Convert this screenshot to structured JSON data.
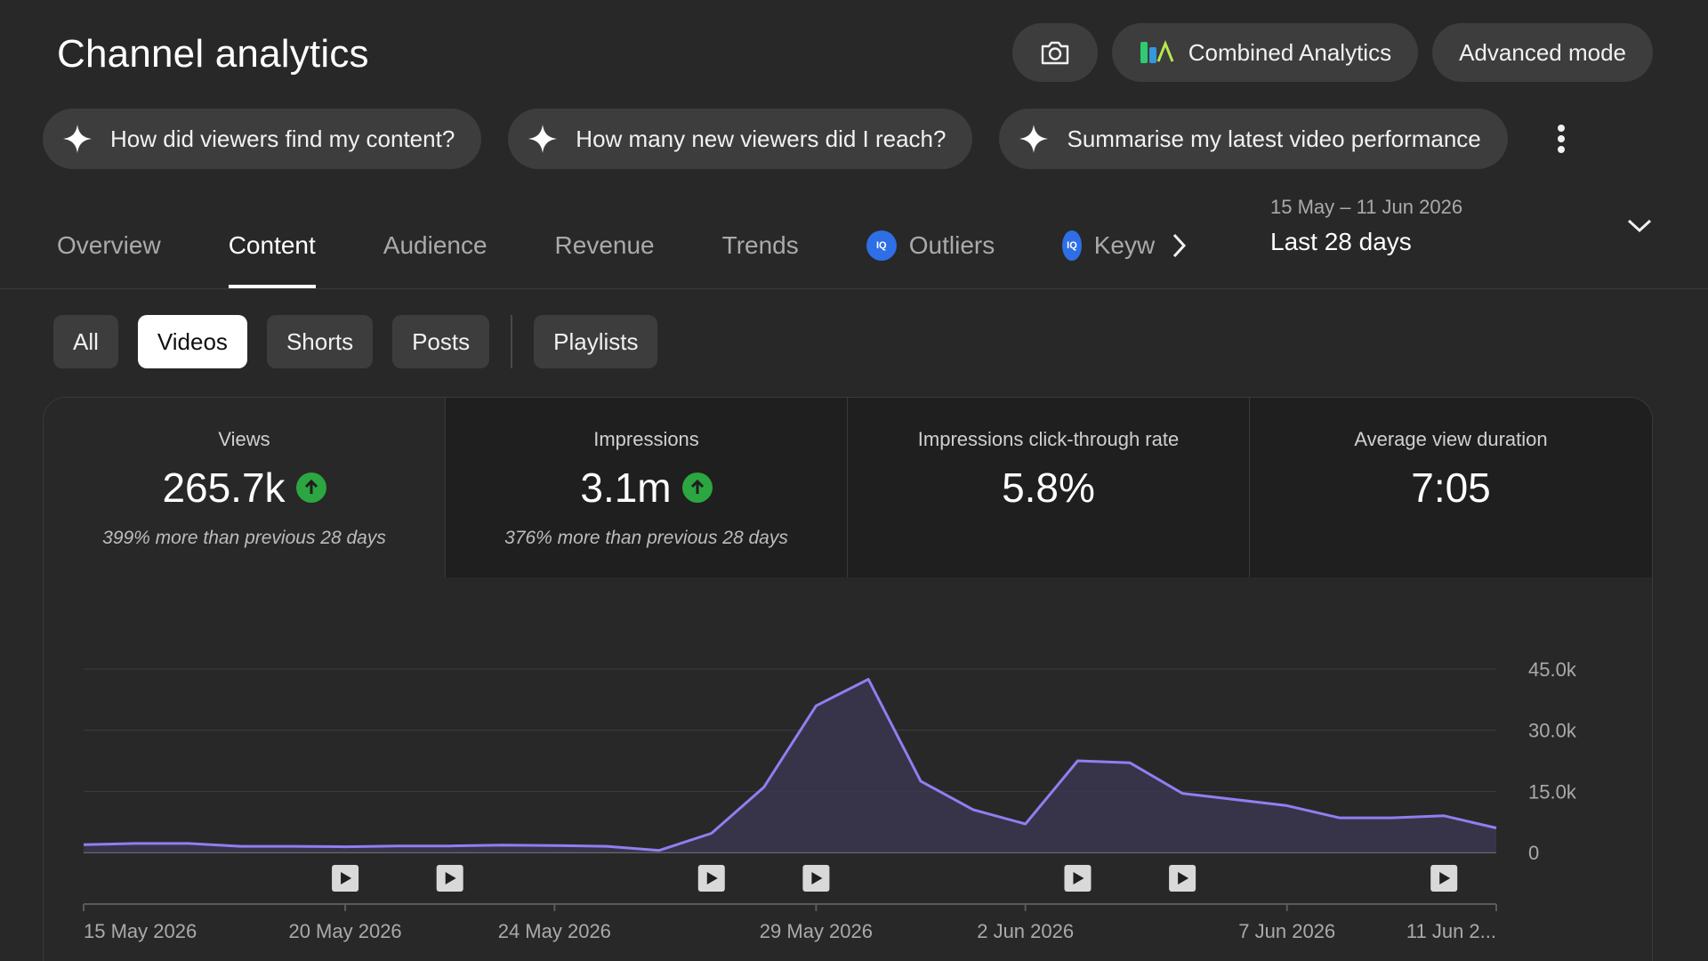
{
  "header": {
    "title": "Channel analytics",
    "combined_label": "Combined Analytics",
    "advanced_label": "Advanced mode"
  },
  "suggestions": [
    "How did viewers find my content?",
    "How many new viewers did I reach?",
    "Summarise my latest video performance"
  ],
  "tabs": [
    {
      "label": "Overview"
    },
    {
      "label": "Content",
      "active": true
    },
    {
      "label": "Audience"
    },
    {
      "label": "Revenue"
    },
    {
      "label": "Trends"
    },
    {
      "label": "Outliers",
      "badge": "IQ"
    },
    {
      "label": "Keyw",
      "badge": "IQ"
    }
  ],
  "date_range": {
    "range": "15 May – 11 Jun 2026",
    "label": "Last 28 days"
  },
  "filters": {
    "all": "All",
    "videos": "Videos",
    "shorts": "Shorts",
    "posts": "Posts",
    "playlists": "Playlists"
  },
  "metrics": [
    {
      "title": "Views",
      "value": "265.7k",
      "note": "399% more than previous 28 days"
    },
    {
      "title": "Impressions",
      "value": "3.1m",
      "note": "376% more than previous 28 days"
    },
    {
      "title": "Impressions click-through rate",
      "value": "5.8%"
    },
    {
      "title": "Average view duration",
      "value": "7:05"
    }
  ],
  "colors": {
    "line": "#8f7ff0",
    "area": "#3a3650",
    "up": "#2ba640",
    "iq_badge": "#2e6fe6"
  },
  "chart_data": {
    "type": "area",
    "series": [
      {
        "values": [
          1900,
          2200,
          2200,
          1500,
          1500,
          1400,
          1600,
          1600,
          1800,
          1700,
          1500,
          500,
          4700,
          16000,
          36000,
          42500,
          17500,
          10500,
          7000,
          22500,
          22000,
          14500,
          13000,
          11500,
          8500,
          8500,
          9000,
          6000
        ]
      }
    ],
    "y_ticks": [
      "45.0k",
      "30.0k",
      "15.0k",
      "0"
    ],
    "y_tick_values": [
      45000,
      30000,
      15000,
      0
    ],
    "ylim": [
      0,
      45000
    ],
    "x_tick_labels": [
      {
        "index": 0,
        "label": "15 May 2026"
      },
      {
        "index": 5,
        "label": "20 May 2026"
      },
      {
        "index": 9,
        "label": "24 May 2026"
      },
      {
        "index": 14,
        "label": "29 May 2026"
      },
      {
        "index": 18,
        "label": "2 Jun 2026"
      },
      {
        "index": 23,
        "label": "7 Jun 2026"
      },
      {
        "index": 27,
        "label": "11 Jun 2..."
      }
    ],
    "video_markers": [
      5,
      7,
      12,
      14,
      19,
      21,
      26
    ],
    "grid": true
  }
}
